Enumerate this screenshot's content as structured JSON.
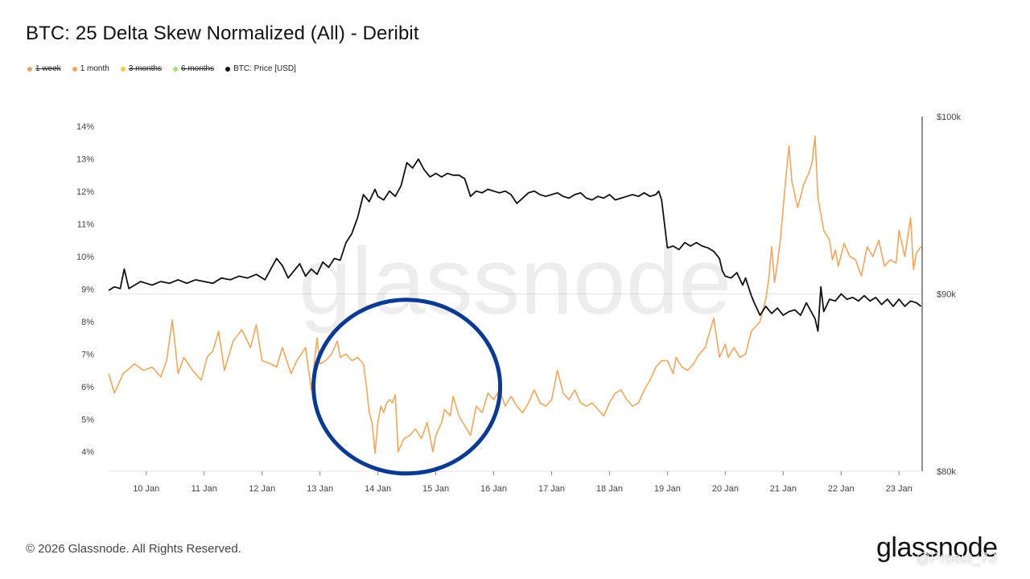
{
  "chart_data": {
    "type": "line",
    "title": "BTC: 25 Delta Skew Normalized (All) - Deribit",
    "watermark": "glassnode",
    "legend": [
      {
        "name": "1 week",
        "color": "#e8a06a",
        "enabled": false
      },
      {
        "name": "1 month",
        "color": "#f2a65a",
        "enabled": true
      },
      {
        "name": "3 months",
        "color": "#f7c94a",
        "enabled": false
      },
      {
        "name": "6 months",
        "color": "#a6e27a",
        "enabled": false
      },
      {
        "name": "BTC: Price [USD]",
        "color": "#111111",
        "enabled": true
      }
    ],
    "x_axis": {
      "ticks": [
        "10 Jan",
        "11 Jan",
        "12 Jan",
        "13 Jan",
        "14 Jan",
        "15 Jan",
        "16 Jan",
        "17 Jan",
        "18 Jan",
        "19 Jan",
        "20 Jan",
        "21 Jan",
        "22 Jan",
        "23 Jan"
      ],
      "range_days": [
        9.35,
        23.4
      ]
    },
    "y_left": {
      "ticks": [
        "14%",
        "13%",
        "12%",
        "11%",
        "10%",
        "9%",
        "8%",
        "7%",
        "6%",
        "5%",
        "4%"
      ],
      "range": [
        3.4,
        14.3
      ]
    },
    "y_right": {
      "ticks": [
        "$100k",
        "$90k",
        "$80k"
      ],
      "range": [
        80000,
        100000
      ]
    },
    "series": [
      {
        "name": "1 month",
        "color": "#f2a65a",
        "axis": "left",
        "points": [
          [
            9.35,
            6.4
          ],
          [
            9.45,
            5.8
          ],
          [
            9.6,
            6.4
          ],
          [
            9.8,
            6.7
          ],
          [
            9.95,
            6.5
          ],
          [
            10.1,
            6.6
          ],
          [
            10.25,
            6.3
          ],
          [
            10.35,
            6.8
          ],
          [
            10.45,
            8.05
          ],
          [
            10.55,
            6.4
          ],
          [
            10.65,
            6.9
          ],
          [
            10.8,
            6.5
          ],
          [
            10.95,
            6.2
          ],
          [
            11.05,
            6.9
          ],
          [
            11.15,
            7.1
          ],
          [
            11.25,
            7.7
          ],
          [
            11.35,
            6.5
          ],
          [
            11.5,
            7.4
          ],
          [
            11.65,
            7.75
          ],
          [
            11.8,
            7.2
          ],
          [
            11.9,
            7.9
          ],
          [
            12.0,
            6.8
          ],
          [
            12.15,
            6.7
          ],
          [
            12.25,
            6.6
          ],
          [
            12.35,
            7.2
          ],
          [
            12.5,
            6.4
          ],
          [
            12.6,
            6.8
          ],
          [
            12.75,
            7.2
          ],
          [
            12.85,
            5.9
          ],
          [
            12.95,
            7.5
          ],
          [
            13.0,
            6.7
          ],
          [
            13.1,
            6.8
          ],
          [
            13.2,
            7.0
          ],
          [
            13.3,
            7.4
          ],
          [
            13.35,
            6.9
          ],
          [
            13.45,
            7.0
          ],
          [
            13.55,
            6.8
          ],
          [
            13.65,
            6.9
          ],
          [
            13.75,
            6.7
          ],
          [
            13.8,
            6.05
          ],
          [
            13.85,
            5.2
          ],
          [
            13.9,
            4.9
          ],
          [
            13.95,
            3.95
          ],
          [
            14.0,
            4.9
          ],
          [
            14.05,
            5.4
          ],
          [
            14.1,
            5.2
          ],
          [
            14.15,
            5.5
          ],
          [
            14.2,
            5.6
          ],
          [
            14.25,
            5.5
          ],
          [
            14.3,
            5.75
          ],
          [
            14.35,
            4.0
          ],
          [
            14.45,
            4.4
          ],
          [
            14.55,
            4.5
          ],
          [
            14.65,
            4.7
          ],
          [
            14.75,
            4.4
          ],
          [
            14.85,
            4.9
          ],
          [
            14.95,
            4.0
          ],
          [
            15.0,
            4.5
          ],
          [
            15.1,
            4.9
          ],
          [
            15.15,
            5.3
          ],
          [
            15.25,
            5.1
          ],
          [
            15.3,
            5.7
          ],
          [
            15.4,
            5.1
          ],
          [
            15.5,
            4.8
          ],
          [
            15.6,
            4.5
          ],
          [
            15.7,
            5.4
          ],
          [
            15.8,
            5.2
          ],
          [
            15.9,
            5.8
          ],
          [
            16.0,
            5.6
          ],
          [
            16.1,
            5.9
          ],
          [
            16.2,
            5.4
          ],
          [
            16.3,
            5.7
          ],
          [
            16.4,
            5.4
          ],
          [
            16.5,
            5.2
          ],
          [
            16.6,
            5.5
          ],
          [
            16.7,
            5.9
          ],
          [
            16.8,
            5.5
          ],
          [
            16.9,
            5.4
          ],
          [
            17.0,
            5.6
          ],
          [
            17.1,
            6.5
          ],
          [
            17.2,
            5.8
          ],
          [
            17.3,
            5.6
          ],
          [
            17.4,
            5.9
          ],
          [
            17.5,
            5.5
          ],
          [
            17.6,
            5.4
          ],
          [
            17.7,
            5.5
          ],
          [
            17.8,
            5.3
          ],
          [
            17.9,
            5.1
          ],
          [
            18.0,
            5.5
          ],
          [
            18.1,
            5.8
          ],
          [
            18.2,
            5.9
          ],
          [
            18.3,
            5.6
          ],
          [
            18.4,
            5.4
          ],
          [
            18.5,
            5.5
          ],
          [
            18.6,
            5.9
          ],
          [
            18.7,
            6.2
          ],
          [
            18.8,
            6.6
          ],
          [
            18.9,
            6.8
          ],
          [
            19.0,
            6.8
          ],
          [
            19.1,
            6.4
          ],
          [
            19.15,
            6.9
          ],
          [
            19.25,
            6.6
          ],
          [
            19.35,
            6.5
          ],
          [
            19.45,
            6.7
          ],
          [
            19.55,
            7.0
          ],
          [
            19.65,
            7.2
          ],
          [
            19.75,
            7.8
          ],
          [
            19.8,
            8.1
          ],
          [
            19.9,
            6.9
          ],
          [
            20.0,
            7.3
          ],
          [
            20.05,
            6.9
          ],
          [
            20.15,
            7.2
          ],
          [
            20.25,
            6.9
          ],
          [
            20.35,
            7.0
          ],
          [
            20.45,
            7.7
          ],
          [
            20.55,
            7.9
          ],
          [
            20.6,
            8.0
          ],
          [
            20.7,
            8.7
          ],
          [
            20.75,
            9.3
          ],
          [
            20.8,
            10.3
          ],
          [
            20.85,
            9.2
          ],
          [
            20.9,
            9.8
          ],
          [
            20.95,
            10.5
          ],
          [
            21.0,
            11.5
          ],
          [
            21.05,
            12.5
          ],
          [
            21.1,
            13.4
          ],
          [
            21.15,
            12.3
          ],
          [
            21.25,
            11.5
          ],
          [
            21.35,
            12.2
          ],
          [
            21.45,
            12.6
          ],
          [
            21.5,
            12.9
          ],
          [
            21.55,
            13.7
          ],
          [
            21.6,
            11.8
          ],
          [
            21.7,
            10.8
          ],
          [
            21.8,
            10.5
          ],
          [
            21.85,
            9.9
          ],
          [
            21.9,
            10.2
          ],
          [
            21.95,
            9.7
          ],
          [
            22.05,
            10.4
          ],
          [
            22.15,
            10.0
          ],
          [
            22.25,
            9.9
          ],
          [
            22.35,
            9.4
          ],
          [
            22.45,
            10.3
          ],
          [
            22.55,
            10.0
          ],
          [
            22.65,
            10.5
          ],
          [
            22.75,
            9.7
          ],
          [
            22.85,
            9.9
          ],
          [
            22.95,
            9.8
          ],
          [
            23.0,
            10.8
          ],
          [
            23.1,
            10.0
          ],
          [
            23.2,
            11.2
          ],
          [
            23.25,
            9.6
          ],
          [
            23.3,
            10.1
          ],
          [
            23.38,
            10.3
          ]
        ]
      },
      {
        "name": "BTC: Price [USD]",
        "color": "#111111",
        "axis": "right",
        "points": [
          [
            9.35,
            90200
          ],
          [
            9.45,
            90400
          ],
          [
            9.55,
            90300
          ],
          [
            9.62,
            91400
          ],
          [
            9.7,
            90300
          ],
          [
            9.8,
            90500
          ],
          [
            9.9,
            90700
          ],
          [
            10.0,
            90600
          ],
          [
            10.1,
            90500
          ],
          [
            10.25,
            90700
          ],
          [
            10.4,
            90600
          ],
          [
            10.55,
            90800
          ],
          [
            10.7,
            90600
          ],
          [
            10.85,
            90800
          ],
          [
            11.0,
            90700
          ],
          [
            11.15,
            90600
          ],
          [
            11.3,
            90900
          ],
          [
            11.45,
            90800
          ],
          [
            11.6,
            91000
          ],
          [
            11.75,
            90900
          ],
          [
            11.9,
            91100
          ],
          [
            12.05,
            90800
          ],
          [
            12.15,
            91400
          ],
          [
            12.25,
            92000
          ],
          [
            12.35,
            91600
          ],
          [
            12.45,
            90900
          ],
          [
            12.55,
            91300
          ],
          [
            12.65,
            91700
          ],
          [
            12.75,
            91000
          ],
          [
            12.85,
            91400
          ],
          [
            12.95,
            91100
          ],
          [
            13.05,
            91800
          ],
          [
            13.15,
            91500
          ],
          [
            13.25,
            92000
          ],
          [
            13.35,
            91900
          ],
          [
            13.45,
            92900
          ],
          [
            13.55,
            93400
          ],
          [
            13.65,
            94300
          ],
          [
            13.75,
            95600
          ],
          [
            13.85,
            95200
          ],
          [
            13.95,
            95900
          ],
          [
            14.0,
            95500
          ],
          [
            14.1,
            95300
          ],
          [
            14.2,
            95800
          ],
          [
            14.3,
            95500
          ],
          [
            14.4,
            96100
          ],
          [
            14.5,
            97400
          ],
          [
            14.6,
            97100
          ],
          [
            14.7,
            97600
          ],
          [
            14.8,
            97000
          ],
          [
            14.9,
            96600
          ],
          [
            15.0,
            96800
          ],
          [
            15.1,
            96600
          ],
          [
            15.2,
            96800
          ],
          [
            15.3,
            96700
          ],
          [
            15.4,
            96700
          ],
          [
            15.5,
            96500
          ],
          [
            15.6,
            95500
          ],
          [
            15.7,
            95800
          ],
          [
            15.8,
            95700
          ],
          [
            15.9,
            95900
          ],
          [
            16.0,
            95800
          ],
          [
            16.1,
            95700
          ],
          [
            16.2,
            95800
          ],
          [
            16.3,
            95600
          ],
          [
            16.4,
            95100
          ],
          [
            16.5,
            95400
          ],
          [
            16.6,
            95700
          ],
          [
            16.7,
            95800
          ],
          [
            16.8,
            95600
          ],
          [
            16.9,
            95500
          ],
          [
            17.0,
            95600
          ],
          [
            17.1,
            95700
          ],
          [
            17.2,
            95500
          ],
          [
            17.3,
            95400
          ],
          [
            17.4,
            95600
          ],
          [
            17.5,
            95700
          ],
          [
            17.6,
            95400
          ],
          [
            17.7,
            95300
          ],
          [
            17.8,
            95500
          ],
          [
            17.9,
            95400
          ],
          [
            18.0,
            95600
          ],
          [
            18.1,
            95300
          ],
          [
            18.2,
            95400
          ],
          [
            18.3,
            95500
          ],
          [
            18.4,
            95600
          ],
          [
            18.5,
            95500
          ],
          [
            18.6,
            95700
          ],
          [
            18.7,
            95500
          ],
          [
            18.8,
            95600
          ],
          [
            18.85,
            95800
          ],
          [
            18.9,
            95300
          ],
          [
            19.0,
            92600
          ],
          [
            19.1,
            92700
          ],
          [
            19.2,
            92500
          ],
          [
            19.3,
            92900
          ],
          [
            19.4,
            92700
          ],
          [
            19.5,
            92900
          ],
          [
            19.6,
            92700
          ],
          [
            19.7,
            92600
          ],
          [
            19.8,
            92400
          ],
          [
            19.9,
            92000
          ],
          [
            19.95,
            91300
          ],
          [
            20.0,
            91000
          ],
          [
            20.1,
            90900
          ],
          [
            20.2,
            91200
          ],
          [
            20.3,
            90500
          ],
          [
            20.35,
            90900
          ],
          [
            20.45,
            89900
          ],
          [
            20.5,
            89500
          ],
          [
            20.6,
            88800
          ],
          [
            20.7,
            89300
          ],
          [
            20.8,
            88900
          ],
          [
            20.9,
            89200
          ],
          [
            21.0,
            88800
          ],
          [
            21.1,
            89000
          ],
          [
            21.2,
            89100
          ],
          [
            21.3,
            88800
          ],
          [
            21.4,
            89500
          ],
          [
            21.5,
            88900
          ],
          [
            21.55,
            88600
          ],
          [
            21.6,
            87900
          ],
          [
            21.65,
            90400
          ],
          [
            21.7,
            89000
          ],
          [
            21.8,
            89700
          ],
          [
            21.9,
            89600
          ],
          [
            22.0,
            90000
          ],
          [
            22.1,
            89700
          ],
          [
            22.2,
            89800
          ],
          [
            22.3,
            89600
          ],
          [
            22.4,
            89900
          ],
          [
            22.5,
            89600
          ],
          [
            22.6,
            89800
          ],
          [
            22.7,
            89400
          ],
          [
            22.8,
            89700
          ],
          [
            22.9,
            89300
          ],
          [
            23.0,
            89700
          ],
          [
            23.1,
            89300
          ],
          [
            23.2,
            89600
          ],
          [
            23.3,
            89500
          ],
          [
            23.38,
            89300
          ]
        ]
      }
    ],
    "annotation": {
      "type": "circle",
      "color": "#0a3a91",
      "center_day": 14.5,
      "center_pct": 6.0
    }
  },
  "footer": {
    "copyright": "© 2026 Glassnode. All Rights Reserved.",
    "brand": "glassnode",
    "overlay": "@Proekt_73"
  }
}
